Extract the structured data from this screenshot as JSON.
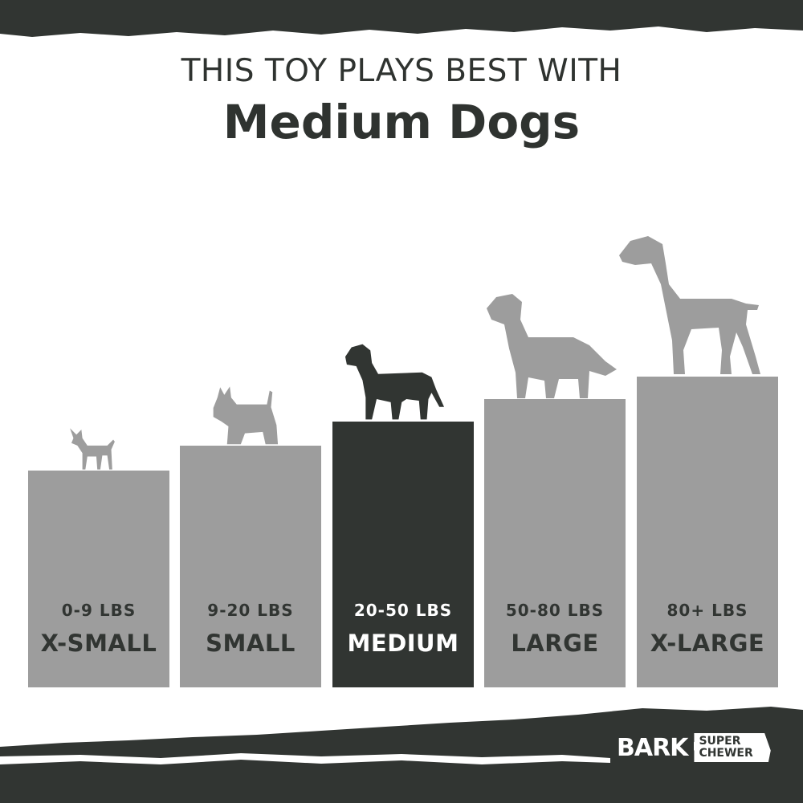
{
  "header": {
    "line1": "THIS TOY PLAYS BEST WITH",
    "line2": "Medium Dogs"
  },
  "sizes": [
    {
      "weight": "0-9 LBS",
      "name": "X-SMALL",
      "highlighted": false
    },
    {
      "weight": "9-20 LBS",
      "name": "SMALL",
      "highlighted": false
    },
    {
      "weight": "20-50 LBS",
      "name": "MEDIUM",
      "highlighted": true
    },
    {
      "weight": "50-80 LBS",
      "name": "LARGE",
      "highlighted": false
    },
    {
      "weight": "80+ LBS",
      "name": "X-LARGE",
      "highlighted": false
    }
  ],
  "logo": {
    "brand": "BARK",
    "tagline_line1": "SUPER",
    "tagline_line2": "CHEWER"
  },
  "colors": {
    "dark": "#313532",
    "gray": "#9d9d9d",
    "background": "#ffffff"
  }
}
